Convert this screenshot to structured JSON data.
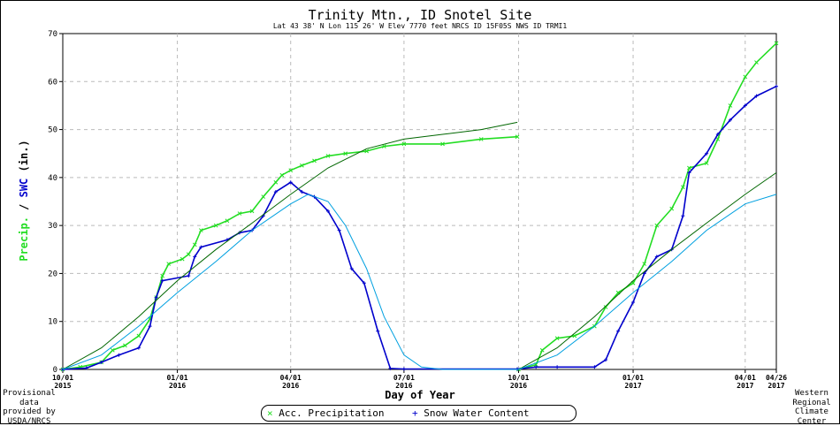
{
  "header": {
    "title": "Trinity Mtn., ID   Snotel Site",
    "subtitle": "Lat 43 38' N   Lon 115 26' W   Elev  7770 feet          NRCS ID 15F05S   NWS ID TRMI1"
  },
  "footer": {
    "left_note": "Provisional data provided by USDA/NRCS",
    "right_note": "Western Regional Climate Center"
  },
  "legend": [
    {
      "symbol": "×",
      "label": "Acc. Precipitation",
      "color": "#22dd22"
    },
    {
      "symbol": "+",
      "label": "Snow Water Content",
      "color": "#0000cc"
    }
  ],
  "chart_data": {
    "type": "line",
    "title": "Trinity Mtn., ID   Snotel Site",
    "xlabel": "Day of Year",
    "ylabel_parts": [
      {
        "text": "Precip.",
        "color": "#22dd22"
      },
      {
        "text": " / ",
        "color": "#000000"
      },
      {
        "text": "SWC",
        "color": "#0000cc"
      },
      {
        "text": " (in.)",
        "color": "#000000"
      }
    ],
    "ylim": [
      0,
      70
    ],
    "yticks": [
      0,
      10,
      20,
      30,
      40,
      50,
      60,
      70
    ],
    "xlim": [
      "2015-10-01",
      "2017-04-26"
    ],
    "xticks": [
      {
        "date": "2015-10-01",
        "label": [
          "10/01",
          "2015"
        ]
      },
      {
        "date": "2016-01-01",
        "label": [
          "01/01",
          "2016"
        ]
      },
      {
        "date": "2016-04-01",
        "label": [
          "04/01",
          "2016"
        ]
      },
      {
        "date": "2016-07-01",
        "label": [
          "07/01",
          "2016"
        ]
      },
      {
        "date": "2016-10-01",
        "label": [
          "10/01",
          "2016"
        ]
      },
      {
        "date": "2017-01-01",
        "label": [
          "01/01",
          "2017"
        ]
      },
      {
        "date": "2017-04-01",
        "label": [
          "04/01",
          "2017"
        ]
      },
      {
        "date": "2017-04-26",
        "label": [
          "04/26",
          "2017"
        ]
      }
    ],
    "grid": true,
    "legend_position": "bottom",
    "series": [
      {
        "name": "Acc. Precipitation",
        "color": "#22dd22",
        "marker": "x",
        "points": [
          [
            "2015-10-01",
            0.0
          ],
          [
            "2015-10-15",
            0.5
          ],
          [
            "2015-11-01",
            1.5
          ],
          [
            "2015-11-10",
            4.0
          ],
          [
            "2015-11-20",
            5.0
          ],
          [
            "2015-12-01",
            7.0
          ],
          [
            "2015-12-10",
            10.5
          ],
          [
            "2015-12-15",
            15.0
          ],
          [
            "2015-12-20",
            19.5
          ],
          [
            "2015-12-25",
            22.0
          ],
          [
            "2016-01-05",
            23.0
          ],
          [
            "2016-01-10",
            24.0
          ],
          [
            "2016-01-15",
            26.0
          ],
          [
            "2016-01-20",
            29.0
          ],
          [
            "2016-02-01",
            30.0
          ],
          [
            "2016-02-10",
            31.0
          ],
          [
            "2016-02-20",
            32.5
          ],
          [
            "2016-03-01",
            33.0
          ],
          [
            "2016-03-10",
            36.0
          ],
          [
            "2016-03-20",
            39.0
          ],
          [
            "2016-03-25",
            40.5
          ],
          [
            "2016-04-01",
            41.5
          ],
          [
            "2016-04-10",
            42.5
          ],
          [
            "2016-04-20",
            43.5
          ],
          [
            "2016-05-01",
            44.5
          ],
          [
            "2016-05-15",
            45.0
          ],
          [
            "2016-06-01",
            45.5
          ],
          [
            "2016-06-15",
            46.5
          ],
          [
            "2016-07-01",
            47.0
          ],
          [
            "2016-08-01",
            47.0
          ],
          [
            "2016-09-01",
            48.0
          ],
          [
            "2016-09-30",
            48.5
          ],
          [
            "2016-10-01",
            0.0
          ],
          [
            "2016-10-15",
            1.0
          ],
          [
            "2016-10-20",
            4.0
          ],
          [
            "2016-11-01",
            6.5
          ],
          [
            "2016-11-15",
            7.0
          ],
          [
            "2016-12-01",
            9.0
          ],
          [
            "2016-12-10",
            13.0
          ],
          [
            "2016-12-20",
            16.0
          ],
          [
            "2017-01-01",
            18.0
          ],
          [
            "2017-01-10",
            22.0
          ],
          [
            "2017-01-20",
            30.0
          ],
          [
            "2017-02-01",
            33.5
          ],
          [
            "2017-02-10",
            38.0
          ],
          [
            "2017-02-15",
            42.0
          ],
          [
            "2017-03-01",
            43.0
          ],
          [
            "2017-03-10",
            48.0
          ],
          [
            "2017-03-20",
            55.0
          ],
          [
            "2017-04-01",
            61.0
          ],
          [
            "2017-04-10",
            64.0
          ],
          [
            "2017-04-26",
            68.0
          ]
        ]
      },
      {
        "name": "Snow Water Content",
        "color": "#0000cc",
        "marker": "+",
        "points": [
          [
            "2015-10-01",
            0.0
          ],
          [
            "2015-10-20",
            0.3
          ],
          [
            "2015-11-01",
            1.5
          ],
          [
            "2015-11-15",
            3.0
          ],
          [
            "2015-12-01",
            4.5
          ],
          [
            "2015-12-10",
            9.0
          ],
          [
            "2015-12-15",
            15.0
          ],
          [
            "2015-12-20",
            18.5
          ],
          [
            "2016-01-10",
            19.5
          ],
          [
            "2016-01-15",
            23.5
          ],
          [
            "2016-01-20",
            25.5
          ],
          [
            "2016-02-10",
            27.0
          ],
          [
            "2016-02-20",
            28.5
          ],
          [
            "2016-03-01",
            29.0
          ],
          [
            "2016-03-10",
            32.0
          ],
          [
            "2016-03-20",
            37.0
          ],
          [
            "2016-04-01",
            39.0
          ],
          [
            "2016-04-10",
            37.0
          ],
          [
            "2016-04-20",
            36.0
          ],
          [
            "2016-05-01",
            33.0
          ],
          [
            "2016-05-10",
            29.0
          ],
          [
            "2016-05-20",
            21.0
          ],
          [
            "2016-05-30",
            18.0
          ],
          [
            "2016-06-10",
            8.0
          ],
          [
            "2016-06-20",
            0.2
          ],
          [
            "2016-07-01",
            0.1
          ],
          [
            "2016-09-30",
            0.1
          ],
          [
            "2016-10-15",
            0.5
          ],
          [
            "2016-11-01",
            0.5
          ],
          [
            "2016-12-01",
            0.5
          ],
          [
            "2016-12-10",
            2.0
          ],
          [
            "2016-12-20",
            8.0
          ],
          [
            "2017-01-01",
            14.0
          ],
          [
            "2017-01-10",
            20.0
          ],
          [
            "2017-01-20",
            23.5
          ],
          [
            "2017-02-01",
            25.0
          ],
          [
            "2017-02-10",
            32.0
          ],
          [
            "2017-02-15",
            41.0
          ],
          [
            "2017-03-01",
            45.0
          ],
          [
            "2017-03-10",
            49.0
          ],
          [
            "2017-03-20",
            52.0
          ],
          [
            "2017-04-01",
            55.0
          ],
          [
            "2017-04-10",
            57.0
          ],
          [
            "2017-04-26",
            59.0
          ]
        ]
      },
      {
        "name": "",
        "color": "#006600",
        "marker": "none",
        "points": [
          [
            "2015-10-01",
            0.0
          ],
          [
            "2015-11-01",
            4.5
          ],
          [
            "2015-12-01",
            11.0
          ],
          [
            "2016-01-01",
            18.5
          ],
          [
            "2016-02-01",
            25.0
          ],
          [
            "2016-03-01",
            30.5
          ],
          [
            "2016-04-01",
            36.5
          ],
          [
            "2016-05-01",
            42.0
          ],
          [
            "2016-06-01",
            46.0
          ],
          [
            "2016-07-01",
            48.0
          ],
          [
            "2016-08-01",
            49.0
          ],
          [
            "2016-09-01",
            50.0
          ],
          [
            "2016-09-30",
            51.5
          ],
          [
            "2016-10-01",
            0.0
          ],
          [
            "2016-11-01",
            4.5
          ],
          [
            "2016-12-01",
            11.0
          ],
          [
            "2017-01-01",
            18.5
          ],
          [
            "2017-02-01",
            25.0
          ],
          [
            "2017-03-01",
            30.5
          ],
          [
            "2017-04-01",
            36.5
          ],
          [
            "2017-04-26",
            41.0
          ]
        ]
      },
      {
        "name": "",
        "color": "#00a0e0",
        "marker": "none",
        "points": [
          [
            "2015-10-01",
            0.0
          ],
          [
            "2015-11-01",
            3.0
          ],
          [
            "2015-12-01",
            9.0
          ],
          [
            "2016-01-01",
            16.0
          ],
          [
            "2016-02-01",
            22.5
          ],
          [
            "2016-03-01",
            29.0
          ],
          [
            "2016-04-01",
            34.5
          ],
          [
            "2016-04-15",
            36.5
          ],
          [
            "2016-05-01",
            35.0
          ],
          [
            "2016-05-15",
            30.0
          ],
          [
            "2016-06-01",
            21.0
          ],
          [
            "2016-06-15",
            11.0
          ],
          [
            "2016-07-01",
            3.0
          ],
          [
            "2016-07-15",
            0.5
          ],
          [
            "2016-08-01",
            0.0
          ],
          [
            "2016-09-30",
            0.0
          ],
          [
            "2016-10-01",
            0.0
          ],
          [
            "2016-11-01",
            3.0
          ],
          [
            "2016-12-01",
            9.0
          ],
          [
            "2017-01-01",
            16.0
          ],
          [
            "2017-02-01",
            22.5
          ],
          [
            "2017-03-01",
            29.0
          ],
          [
            "2017-04-01",
            34.5
          ],
          [
            "2017-04-26",
            36.5
          ]
        ]
      }
    ]
  }
}
